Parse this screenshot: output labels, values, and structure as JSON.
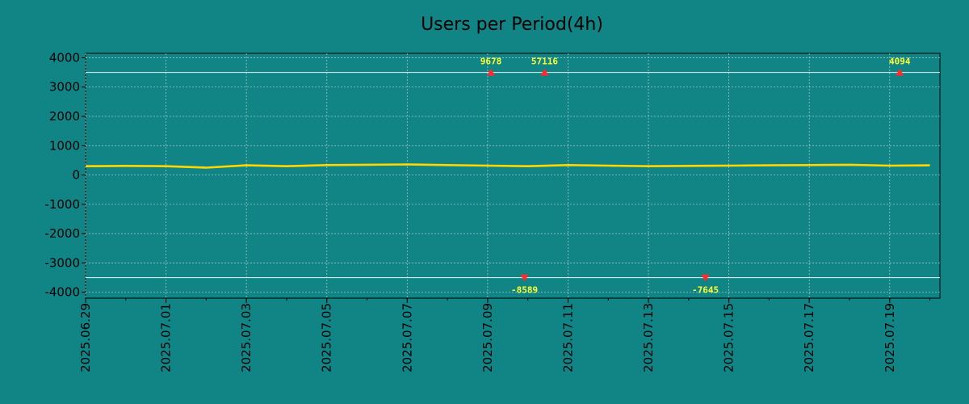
{
  "chart_data": {
    "type": "line",
    "title": "Users per Period(4h)",
    "xlabel": "",
    "ylabel": "",
    "ylim": [
      -4200,
      4150
    ],
    "y_ticks": [
      4000,
      3000,
      2000,
      1000,
      0,
      -1000,
      -2000,
      -3000,
      -4000
    ],
    "x_start": "2025-06-29",
    "x_end": "2025-07-20",
    "x_tick_labels": [
      "2025.06.29",
      "2025.07.01",
      "2025.07.03",
      "2025.07.05",
      "2025.07.07",
      "2025.07.09",
      "2025.07.11",
      "2025.07.13",
      "2025.07.15",
      "2025.07.17",
      "2025.07.19"
    ],
    "x_ticks": [
      "2025-06-29",
      "2025-07-01",
      "2025-07-03",
      "2025-07-05",
      "2025-07-07",
      "2025-07-09",
      "2025-07-11",
      "2025-07-13",
      "2025-07-15",
      "2025-07-17",
      "2025-07-19"
    ],
    "reference_lines": [
      3500,
      -3500
    ],
    "grid": true,
    "colors": {
      "background": "#118486",
      "line": "#ffd700",
      "marker": "#ff2a2a",
      "annotation": "#ffff33",
      "reference_line": "#e8f4f4"
    },
    "series": [
      {
        "x": [
          "2025-06-29",
          "2025-06-30",
          "2025-07-01",
          "2025-07-02",
          "2025-07-03",
          "2025-07-04",
          "2025-07-05",
          "2025-07-06",
          "2025-07-07",
          "2025-07-08",
          "2025-07-09",
          "2025-07-10",
          "2025-07-11",
          "2025-07-12",
          "2025-07-13",
          "2025-07-14",
          "2025-07-15",
          "2025-07-16",
          "2025-07-17",
          "2025-07-18",
          "2025-07-19",
          "2025-07-20"
        ],
        "y": [
          300,
          310,
          300,
          250,
          330,
          300,
          340,
          350,
          360,
          340,
          320,
          300,
          340,
          320,
          300,
          310,
          320,
          330,
          340,
          350,
          320,
          330
        ]
      }
    ],
    "annotations": [
      {
        "x": "2025-07-09 02:00",
        "y": 3500,
        "label": "9678",
        "direction": "up"
      },
      {
        "x": "2025-07-09 22:00",
        "y": -3500,
        "label": "-8589",
        "direction": "down"
      },
      {
        "x": "2025-07-10 10:00",
        "y": 3500,
        "label": "57116",
        "direction": "up"
      },
      {
        "x": "2025-07-14 10:00",
        "y": -3500,
        "label": "-7645",
        "direction": "down"
      },
      {
        "x": "2025-07-19 06:00",
        "y": 3500,
        "label": "4094",
        "direction": "up"
      }
    ]
  }
}
